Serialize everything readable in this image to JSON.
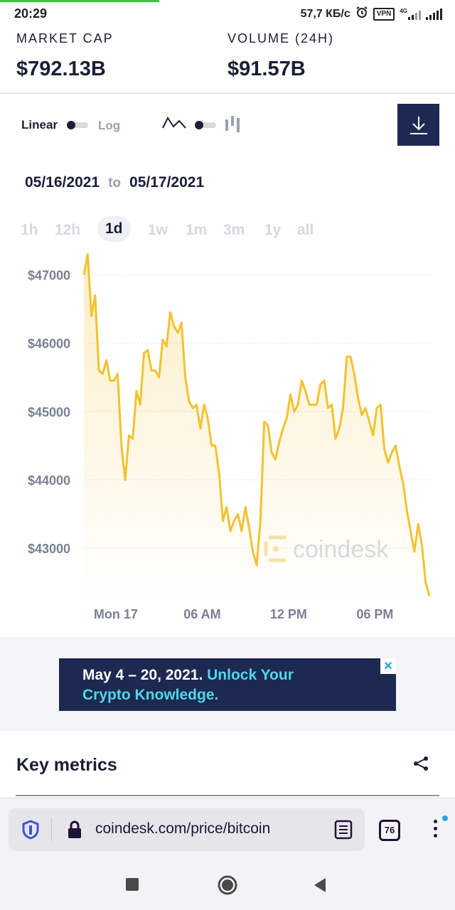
{
  "status": {
    "time": "20:29",
    "network_speed": "57,7 КБ/с",
    "vpn": "VPN",
    "network_type": "4G"
  },
  "stats": {
    "market_cap_label": "MARKET CAP",
    "market_cap_value": "$792.13B",
    "volume_label": "VOLUME (24H)",
    "volume_value": "$91.57B"
  },
  "controls": {
    "linear_label": "Linear",
    "log_label": "Log",
    "scale_toggle": "linear",
    "chart_type_toggle": "line",
    "download_icon": "download-icon"
  },
  "date_range": {
    "from": "05/16/2021",
    "to_word": "to",
    "to": "05/17/2021"
  },
  "time_tabs": [
    "1h",
    "12h",
    "1d",
    "1w",
    "1m",
    "3m",
    "1y",
    "all"
  ],
  "active_tab": "1d",
  "chart_data": {
    "type": "area",
    "y_tick_labels": [
      "$47000",
      "$46000",
      "$45000",
      "$44000",
      "$43000"
    ],
    "y_ticks": [
      47000,
      46000,
      45000,
      44000,
      43000
    ],
    "ylim": [
      42200,
      47400
    ],
    "x_tick_labels": [
      "Mon 17",
      "06 AM",
      "12 PM",
      "06 PM"
    ],
    "x_tick_positions": [
      0.15,
      0.4,
      0.65,
      0.9
    ],
    "grid": true,
    "line_color": "#f2c230",
    "watermark": "coindesk",
    "series": [
      {
        "values": [
          47000,
          47300,
          46400,
          46700,
          45600,
          45550,
          45750,
          45450,
          45450,
          45550,
          44500,
          44000,
          44650,
          44600,
          45300,
          45100,
          45850,
          45900,
          45600,
          45600,
          45500,
          46050,
          45950,
          46450,
          46250,
          46150,
          46300,
          45500,
          45150,
          45050,
          45100,
          44750,
          45100,
          44900,
          44500,
          44500,
          44100,
          43400,
          43600,
          43250,
          43400,
          43500,
          43250,
          43600,
          43300,
          42950,
          42750,
          43400,
          44850,
          44800,
          44400,
          44300,
          44550,
          44750,
          44900,
          45250,
          45000,
          45100,
          45450,
          45300,
          45100,
          45100,
          45100,
          45400,
          45450,
          45050,
          45100,
          44600,
          44750,
          45050,
          45800,
          45800,
          45550,
          45200,
          44950,
          45050,
          44850,
          44650,
          45050,
          45100,
          44450,
          44250,
          44400,
          44500,
          44200,
          43950,
          43550,
          43250,
          42950,
          43350,
          43050,
          42500,
          42300
        ]
      }
    ]
  },
  "ad": {
    "date_text": "May 4 – 20, 2021.",
    "cta_text": "Unlock Your Crypto Knowledge.",
    "close": "×"
  },
  "key_metrics": {
    "title": "Key metrics",
    "share_icon": "share-icon"
  },
  "browser": {
    "url": "coindesk.com/price/bitcoin",
    "tab_count": "76"
  }
}
